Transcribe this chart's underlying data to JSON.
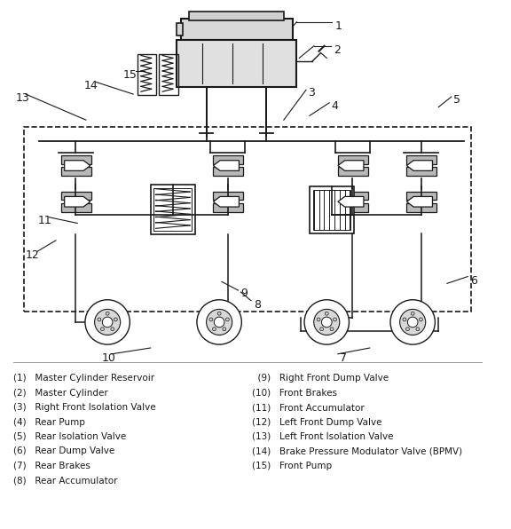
{
  "legend_left": [
    "(1)   Master Cylinder Reservoir",
    "(2)   Master Cylinder",
    "(3)   Right Front Isolation Valve",
    "(4)   Rear Pump",
    "(5)   Rear Isolation Valve",
    "(6)   Rear Dump Valve",
    "(7)   Rear Brakes",
    "(8)   Rear Accumulator"
  ],
  "legend_right": [
    "  (9)   Right Front Dump Valve",
    "(10)   Front Brakes",
    "(11)   Front Accumulator",
    "(12)   Left Front Dump Valve",
    "(13)   Left Front Isolation Valve",
    "(14)   Brake Pressure Modulator Valve (BPMV)",
    "(15)   Front Pump"
  ],
  "bg_color": "#ffffff",
  "line_color": "#1a1a1a",
  "text_color": "#1a1a1a",
  "font_size": 7.5
}
